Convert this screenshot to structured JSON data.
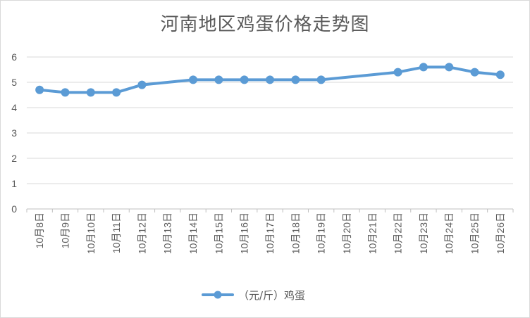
{
  "chart_data": {
    "type": "line",
    "title": "河南地区鸡蛋价格走势图",
    "xlabel": "",
    "ylabel": "",
    "ylim": [
      0,
      6
    ],
    "yticks": [
      0,
      1,
      2,
      3,
      4,
      5,
      6
    ],
    "grid": true,
    "legend_placement": "bottom-center",
    "categories": [
      "10月8日",
      "10月9日",
      "10月10日",
      "10月11日",
      "10月12日",
      "10月13日",
      "10月14日",
      "10月15日",
      "10月16日",
      "10月17日",
      "10月18日",
      "10月19日",
      "10月20日",
      "10月21日",
      "10月22日",
      "10月23日",
      "10月24日",
      "10月25日",
      "10月26日"
    ],
    "series": [
      {
        "name": "（元/斤）鸡蛋",
        "color": "#5b9bd5",
        "values": [
          4.7,
          4.6,
          4.6,
          4.6,
          4.9,
          null,
          5.1,
          5.1,
          5.1,
          5.1,
          5.1,
          5.1,
          null,
          null,
          5.4,
          5.6,
          5.6,
          5.4,
          5.3
        ]
      }
    ]
  }
}
